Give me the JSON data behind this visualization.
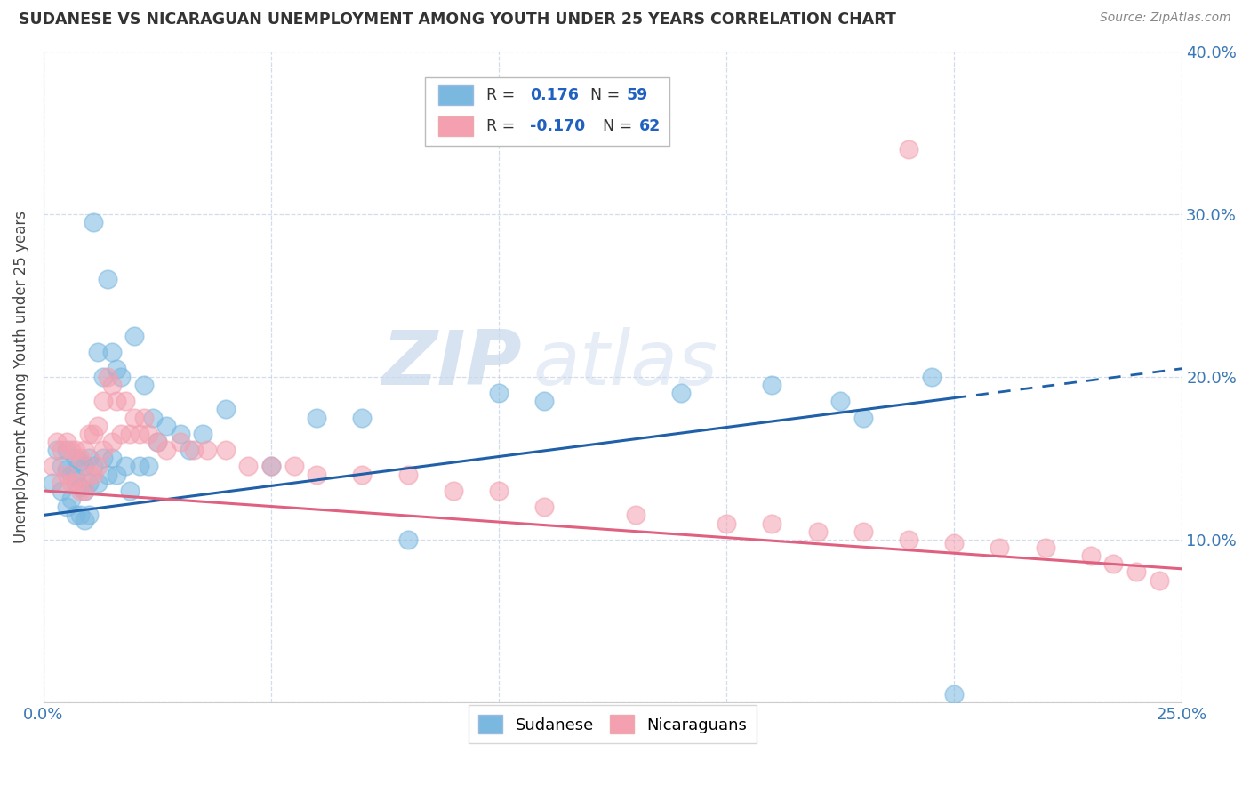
{
  "title": "SUDANESE VS NICARAGUAN UNEMPLOYMENT AMONG YOUTH UNDER 25 YEARS CORRELATION CHART",
  "source": "Source: ZipAtlas.com",
  "ylabel": "Unemployment Among Youth under 25 years",
  "xlim": [
    0.0,
    0.25
  ],
  "ylim": [
    0.0,
    0.4
  ],
  "R_blue": 0.176,
  "N_blue": 59,
  "R_pink": -0.17,
  "N_pink": 62,
  "blue_color": "#7ab8e0",
  "pink_color": "#f4a0b0",
  "blue_line_color": "#2060a8",
  "pink_line_color": "#e06080",
  "watermark_zip": "ZIP",
  "watermark_atlas": "atlas",
  "legend_label_blue": "Sudanese",
  "legend_label_pink": "Nicaraguans",
  "blue_line_x0": 0.0,
  "blue_line_y0": 0.115,
  "blue_line_x1": 0.25,
  "blue_line_y1": 0.205,
  "pink_line_x0": 0.0,
  "pink_line_y0": 0.13,
  "pink_line_x1": 0.25,
  "pink_line_y1": 0.082,
  "blue_scatter_x": [
    0.002,
    0.003,
    0.004,
    0.004,
    0.005,
    0.005,
    0.005,
    0.006,
    0.006,
    0.007,
    0.007,
    0.007,
    0.008,
    0.008,
    0.008,
    0.009,
    0.009,
    0.009,
    0.01,
    0.01,
    0.01,
    0.011,
    0.011,
    0.012,
    0.012,
    0.013,
    0.013,
    0.014,
    0.014,
    0.015,
    0.015,
    0.016,
    0.016,
    0.017,
    0.018,
    0.019,
    0.02,
    0.021,
    0.022,
    0.023,
    0.024,
    0.025,
    0.027,
    0.03,
    0.032,
    0.035,
    0.04,
    0.05,
    0.06,
    0.07,
    0.08,
    0.1,
    0.11,
    0.14,
    0.16,
    0.175,
    0.18,
    0.195,
    0.2
  ],
  "blue_scatter_y": [
    0.135,
    0.155,
    0.145,
    0.13,
    0.155,
    0.143,
    0.12,
    0.14,
    0.125,
    0.15,
    0.138,
    0.115,
    0.148,
    0.132,
    0.115,
    0.145,
    0.13,
    0.112,
    0.15,
    0.135,
    0.115,
    0.295,
    0.145,
    0.215,
    0.135,
    0.2,
    0.15,
    0.26,
    0.14,
    0.215,
    0.15,
    0.205,
    0.14,
    0.2,
    0.145,
    0.13,
    0.225,
    0.145,
    0.195,
    0.145,
    0.175,
    0.16,
    0.17,
    0.165,
    0.155,
    0.165,
    0.18,
    0.145,
    0.175,
    0.175,
    0.1,
    0.19,
    0.185,
    0.19,
    0.195,
    0.185,
    0.175,
    0.2,
    0.005
  ],
  "pink_scatter_x": [
    0.002,
    0.003,
    0.004,
    0.004,
    0.005,
    0.005,
    0.006,
    0.006,
    0.007,
    0.007,
    0.008,
    0.008,
    0.009,
    0.009,
    0.01,
    0.01,
    0.011,
    0.011,
    0.012,
    0.012,
    0.013,
    0.013,
    0.014,
    0.015,
    0.015,
    0.016,
    0.017,
    0.018,
    0.019,
    0.02,
    0.021,
    0.022,
    0.023,
    0.025,
    0.027,
    0.03,
    0.033,
    0.036,
    0.04,
    0.045,
    0.05,
    0.055,
    0.06,
    0.07,
    0.08,
    0.09,
    0.1,
    0.11,
    0.13,
    0.15,
    0.16,
    0.17,
    0.18,
    0.19,
    0.2,
    0.21,
    0.22,
    0.23,
    0.235,
    0.24,
    0.19,
    0.245
  ],
  "pink_scatter_y": [
    0.145,
    0.16,
    0.155,
    0.135,
    0.16,
    0.14,
    0.155,
    0.135,
    0.155,
    0.135,
    0.15,
    0.13,
    0.155,
    0.13,
    0.165,
    0.14,
    0.165,
    0.14,
    0.17,
    0.145,
    0.185,
    0.155,
    0.2,
    0.195,
    0.16,
    0.185,
    0.165,
    0.185,
    0.165,
    0.175,
    0.165,
    0.175,
    0.165,
    0.16,
    0.155,
    0.16,
    0.155,
    0.155,
    0.155,
    0.145,
    0.145,
    0.145,
    0.14,
    0.14,
    0.14,
    0.13,
    0.13,
    0.12,
    0.115,
    0.11,
    0.11,
    0.105,
    0.105,
    0.1,
    0.098,
    0.095,
    0.095,
    0.09,
    0.085,
    0.08,
    0.34,
    0.075
  ]
}
